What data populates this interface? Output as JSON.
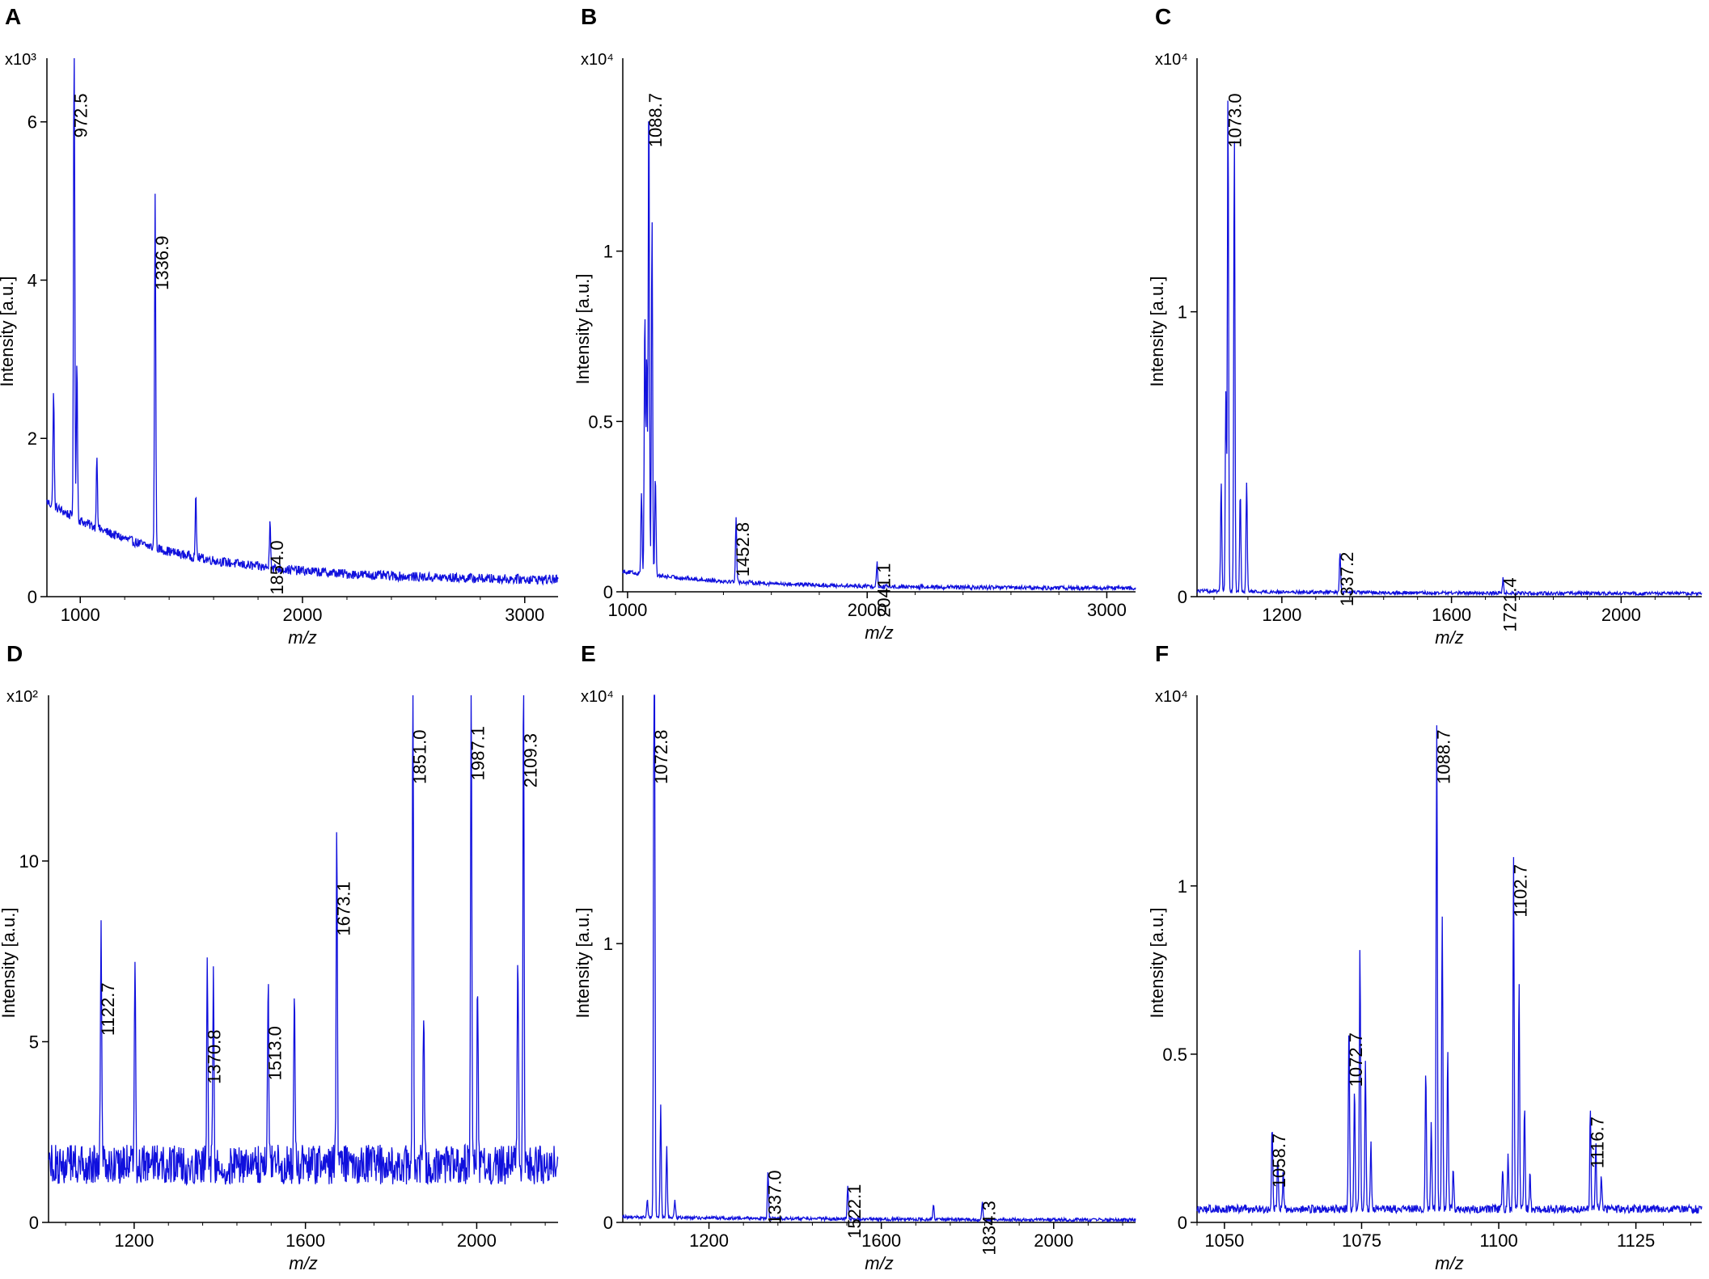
{
  "chart_data": [
    {
      "panel": "A",
      "type": "line",
      "ylabel": "Intensity [a.u.]",
      "xlabel": "m/z",
      "multiplier": "x10³",
      "xlim": [
        850,
        3150
      ],
      "ylim": [
        0,
        6.3
      ],
      "x_ticks": [
        1000,
        2000,
        3000
      ],
      "y_ticks": [
        0,
        2,
        4,
        6
      ],
      "color": "#1010dd",
      "baseline": {
        "start": 1.2,
        "end": 0.2,
        "decay": 0.0018,
        "noise": 0.06
      },
      "peaks": [
        {
          "x": 972.5,
          "y": 6.3,
          "label": "972.5"
        },
        {
          "x": 1336.9,
          "y": 4.5,
          "label": "1336.9"
        },
        {
          "x": 1854.0,
          "y": 0.65,
          "label": "1854.0"
        },
        {
          "x": 880,
          "y": 1.45
        },
        {
          "x": 985,
          "y": 2.0
        },
        {
          "x": 1075,
          "y": 0.95
        },
        {
          "x": 1520,
          "y": 0.75
        }
      ]
    },
    {
      "panel": "B",
      "type": "line",
      "ylabel": "Intensity [a.u.]",
      "xlabel": "m/z",
      "multiplier": "x10⁴",
      "xlim": [
        980,
        3120
      ],
      "ylim": [
        0,
        1.45
      ],
      "x_ticks": [
        1000,
        2000,
        3000
      ],
      "y_ticks": [
        0,
        0.5,
        1
      ],
      "y_tick_labels": [
        "0",
        "0.5",
        "1"
      ],
      "color": "#1010dd",
      "baseline": {
        "start": 0.06,
        "end": 0.01,
        "decay": 0.002,
        "noise": 0.006
      },
      "peaks": [
        {
          "x": 1088.7,
          "y": 1.45,
          "label": "1088.7"
        },
        {
          "x": 1452.8,
          "y": 0.19,
          "label": "1452.8"
        },
        {
          "x": 2041.1,
          "y": 0.07,
          "label": "2041.1"
        },
        {
          "x": 1058,
          "y": 0.24
        },
        {
          "x": 1072,
          "y": 0.78
        },
        {
          "x": 1080,
          "y": 0.65
        },
        {
          "x": 1102,
          "y": 1.05
        },
        {
          "x": 1116,
          "y": 0.3
        }
      ]
    },
    {
      "panel": "C",
      "type": "line",
      "ylabel": "Intensity [a.u.]",
      "xlabel": "m/z",
      "multiplier": "x10⁴",
      "xlim": [
        1000,
        2190
      ],
      "ylim": [
        0,
        1.75
      ],
      "x_ticks": [
        1200,
        1600,
        2000
      ],
      "y_ticks": [
        0,
        1
      ],
      "color": "#1010dd",
      "baseline": {
        "start": 0.02,
        "end": 0.01,
        "decay": 0.002,
        "noise": 0.006
      },
      "peaks": [
        {
          "x": 1073.0,
          "y": 1.75,
          "label": "1073.0"
        },
        {
          "x": 1337.2,
          "y": 0.14,
          "label": "1337.2"
        },
        {
          "x": 1721.4,
          "y": 0.05,
          "label": "1721.4"
        },
        {
          "x": 1057,
          "y": 0.38
        },
        {
          "x": 1068,
          "y": 0.7
        },
        {
          "x": 1088,
          "y": 1.6
        },
        {
          "x": 1102,
          "y": 0.35
        },
        {
          "x": 1117,
          "y": 0.39
        }
      ]
    },
    {
      "panel": "D",
      "type": "line",
      "ylabel": "Intensity [a.u.]",
      "xlabel": "m/z",
      "multiplier": "x10²",
      "xlim": [
        1000,
        2190
      ],
      "ylim": [
        0,
        13.5
      ],
      "x_ticks": [
        1200,
        1600,
        2000
      ],
      "y_ticks": [
        0,
        5,
        10
      ],
      "color": "#1010dd",
      "baseline": {
        "start": 1.6,
        "end": 1.6,
        "decay": 0.0,
        "noise": 0.55
      },
      "peaks": [
        {
          "x": 1122.7,
          "y": 6.5,
          "label": "1122.7"
        },
        {
          "x": 1370.8,
          "y": 5.2,
          "label": "1370.8"
        },
        {
          "x": 1513.0,
          "y": 5.3,
          "label": "1513.0"
        },
        {
          "x": 1673.1,
          "y": 9.3,
          "label": "1673.1"
        },
        {
          "x": 1851.0,
          "y": 13.5,
          "label": "1851.0"
        },
        {
          "x": 1987.1,
          "y": 13.6,
          "label": "1987.1"
        },
        {
          "x": 2109.3,
          "y": 13.4,
          "label": "2109.3"
        },
        {
          "x": 1202,
          "y": 5.6
        },
        {
          "x": 1385,
          "y": 5.6
        },
        {
          "x": 1574,
          "y": 5.0
        },
        {
          "x": 1876,
          "y": 4.5
        },
        {
          "x": 2002,
          "y": 5.2
        },
        {
          "x": 2096,
          "y": 6.3
        }
      ]
    },
    {
      "panel": "E",
      "type": "line",
      "ylabel": "Intensity [a.u.]",
      "xlabel": "m/z",
      "multiplier": "x10⁴",
      "xlim": [
        1000,
        2190
      ],
      "ylim": [
        0,
        1.75
      ],
      "x_ticks": [
        1200,
        1600,
        2000
      ],
      "y_ticks": [
        0,
        1
      ],
      "color": "#1010dd",
      "baseline": {
        "start": 0.02,
        "end": 0.008,
        "decay": 0.002,
        "noise": 0.006
      },
      "peaks": [
        {
          "x": 1072.8,
          "y": 1.75,
          "label": "1072.8"
        },
        {
          "x": 1337.0,
          "y": 0.17,
          "label": "1337.0"
        },
        {
          "x": 1522.1,
          "y": 0.12,
          "label": "1522.1"
        },
        {
          "x": 1834.3,
          "y": 0.06,
          "label": "1834.3"
        },
        {
          "x": 1073.5,
          "y": 0.98
        },
        {
          "x": 1088,
          "y": 0.4
        },
        {
          "x": 1102,
          "y": 0.26
        },
        {
          "x": 1057,
          "y": 0.06
        },
        {
          "x": 1121,
          "y": 0.06
        },
        {
          "x": 1721,
          "y": 0.05
        }
      ]
    },
    {
      "panel": "F",
      "type": "line",
      "ylabel": "Intensity [a.u.]",
      "xlabel": "m/z",
      "multiplier": "x10⁴",
      "xlim": [
        1045,
        1137
      ],
      "ylim": [
        0,
        1.45
      ],
      "x_ticks": [
        1050,
        1075,
        1100,
        1125
      ],
      "y_ticks": [
        0,
        0.5,
        1
      ],
      "y_tick_labels": [
        "0",
        "0.5",
        "1"
      ],
      "color": "#1010dd",
      "baseline": {
        "start": 0.04,
        "end": 0.04,
        "decay": 0.0,
        "noise": 0.012
      },
      "peaks": [
        {
          "x": 1058.7,
          "y": 0.25,
          "label": "1058.7"
        },
        {
          "x": 1072.7,
          "y": 0.55,
          "label": "1072.7"
        },
        {
          "x": 1088.7,
          "y": 1.45,
          "label": "1088.7"
        },
        {
          "x": 1102.7,
          "y": 1.05,
          "label": "1102.7"
        },
        {
          "x": 1116.7,
          "y": 0.3,
          "label": "1116.7"
        },
        {
          "x": 1059.7,
          "y": 0.16
        },
        {
          "x": 1060.7,
          "y": 0.11
        },
        {
          "x": 1073.7,
          "y": 0.35
        },
        {
          "x": 1074.7,
          "y": 0.78
        },
        {
          "x": 1075.7,
          "y": 0.44
        },
        {
          "x": 1076.7,
          "y": 0.2
        },
        {
          "x": 1086.7,
          "y": 0.42
        },
        {
          "x": 1087.7,
          "y": 0.25
        },
        {
          "x": 1089.7,
          "y": 0.88
        },
        {
          "x": 1090.7,
          "y": 0.47
        },
        {
          "x": 1091.7,
          "y": 0.13
        },
        {
          "x": 1100.7,
          "y": 0.12
        },
        {
          "x": 1101.7,
          "y": 0.16
        },
        {
          "x": 1103.7,
          "y": 0.68
        },
        {
          "x": 1104.7,
          "y": 0.31
        },
        {
          "x": 1105.7,
          "y": 0.1
        },
        {
          "x": 1117.7,
          "y": 0.2
        },
        {
          "x": 1118.7,
          "y": 0.1
        }
      ]
    }
  ]
}
